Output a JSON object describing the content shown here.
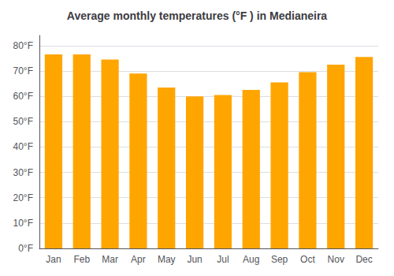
{
  "chart_data": {
    "type": "bar",
    "title": "Average monthly temperatures (°F ) in Medianeira",
    "categories": [
      "Jan",
      "Feb",
      "Mar",
      "Apr",
      "May",
      "Jun",
      "Jul",
      "Aug",
      "Sep",
      "Oct",
      "Nov",
      "Dec"
    ],
    "values": [
      76.5,
      76.5,
      74.5,
      69.0,
      63.5,
      60.0,
      60.5,
      62.5,
      65.5,
      69.5,
      72.5,
      75.5
    ],
    "color": "#FFA500",
    "ylim": [
      0,
      84
    ],
    "yticks": [
      {
        "value": 0,
        "label": "0°F"
      },
      {
        "value": 10,
        "label": "10°F"
      },
      {
        "value": 20,
        "label": "20°F"
      },
      {
        "value": 30,
        "label": "30°F"
      },
      {
        "value": 40,
        "label": "40°F"
      },
      {
        "value": 50,
        "label": "50°F"
      },
      {
        "value": 60,
        "label": "60°F"
      },
      {
        "value": 70,
        "label": "70°F"
      },
      {
        "value": 80,
        "label": "80°F"
      }
    ],
    "grid": true
  }
}
